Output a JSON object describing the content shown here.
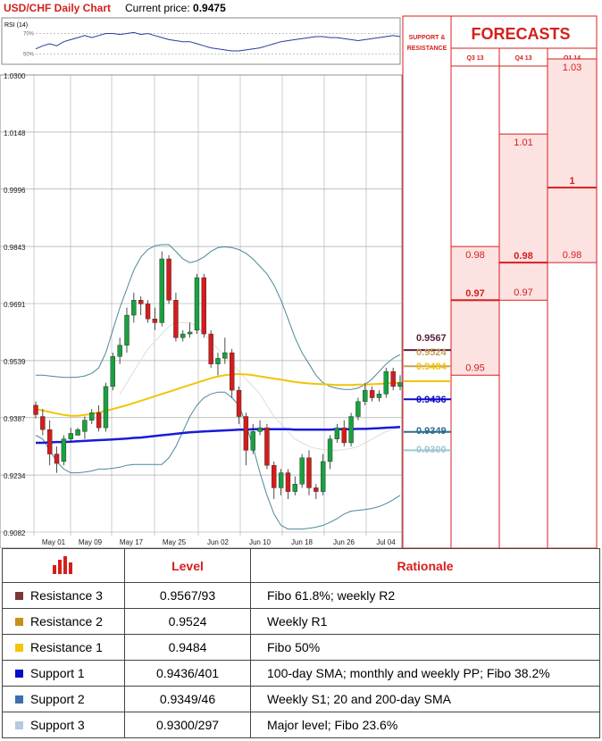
{
  "header": {
    "title": "USD/CHF Daily Chart",
    "price_label": "Current price:",
    "price_value": "0.9475"
  },
  "rsi": {
    "label": "RSI (14)",
    "level_high": "70%",
    "level_low": "50%"
  },
  "forecasts": {
    "title": "FORECASTS",
    "sr_label_line1": "SUPPORT &",
    "sr_label_line2": "RESISTANCE",
    "columns": [
      "Q3 13",
      "Q4 13",
      "Q1 14"
    ],
    "values": [
      {
        "col": 0,
        "low": 0.95,
        "mid": 0.97,
        "high": 0.98,
        "labels": [
          "0.95",
          "0.97",
          "0.98"
        ]
      },
      {
        "col": 1,
        "low": 0.97,
        "mid": 0.98,
        "high": 1.01,
        "labels": [
          "0.97",
          "0.98",
          "1.01"
        ]
      },
      {
        "col": 2,
        "low": 0.98,
        "mid": 1.0,
        "high": 1.03,
        "labels": [
          "0.98",
          "1",
          "1.03"
        ]
      }
    ]
  },
  "sr_levels": [
    {
      "value": 0.9567,
      "label": "0.9567",
      "color": "#5a1f3a"
    },
    {
      "value": 0.9524,
      "label": "0.9524",
      "color": "#c8a060"
    },
    {
      "value": 0.9484,
      "label": "0.9484",
      "color": "#f2c40a"
    },
    {
      "value": 0.9436,
      "label": "0.9436",
      "color": "#0a0ac8"
    },
    {
      "value": 0.9349,
      "label": "0.9349",
      "color": "#2e6c90"
    },
    {
      "value": 0.93,
      "label": "0.9300",
      "color": "#9fc7d4"
    }
  ],
  "chart_data": {
    "type": "candlestick",
    "ylim": [
      0.9082,
      1.03
    ],
    "y_ticks": [
      "1.0300",
      "1.0148",
      "0.9996",
      "0.9843",
      "0.9691",
      "0.9539",
      "0.9387",
      "0.9234",
      "0.9082"
    ],
    "x_labels": [
      "May 01",
      "May 09",
      "May 17",
      "May 25",
      "Jun 02",
      "Jun 10",
      "Jun 18",
      "Jun 26",
      "Jul 04"
    ],
    "candles": [
      [
        0.942,
        0.943,
        0.9385,
        0.9395
      ],
      [
        0.939,
        0.941,
        0.934,
        0.9355
      ],
      [
        0.9355,
        0.938,
        0.926,
        0.929
      ],
      [
        0.929,
        0.931,
        0.924,
        0.9265
      ],
      [
        0.927,
        0.934,
        0.926,
        0.933
      ],
      [
        0.933,
        0.936,
        0.932,
        0.9345
      ],
      [
        0.934,
        0.936,
        0.934,
        0.9355
      ],
      [
        0.935,
        0.939,
        0.933,
        0.938
      ],
      [
        0.938,
        0.941,
        0.937,
        0.94
      ],
      [
        0.94,
        0.942,
        0.935,
        0.936
      ],
      [
        0.936,
        0.948,
        0.935,
        0.947
      ],
      [
        0.947,
        0.956,
        0.946,
        0.955
      ],
      [
        0.955,
        0.96,
        0.953,
        0.958
      ],
      [
        0.958,
        0.968,
        0.956,
        0.966
      ],
      [
        0.966,
        0.972,
        0.964,
        0.97
      ],
      [
        0.97,
        0.971,
        0.966,
        0.969
      ],
      [
        0.969,
        0.97,
        0.964,
        0.965
      ],
      [
        0.965,
        0.968,
        0.962,
        0.964
      ],
      [
        0.964,
        0.983,
        0.963,
        0.981
      ],
      [
        0.981,
        0.982,
        0.969,
        0.97
      ],
      [
        0.97,
        0.972,
        0.959,
        0.96
      ],
      [
        0.96,
        0.962,
        0.959,
        0.961
      ],
      [
        0.961,
        0.964,
        0.96,
        0.9615
      ],
      [
        0.962,
        0.977,
        0.961,
        0.976
      ],
      [
        0.976,
        0.977,
        0.96,
        0.961
      ],
      [
        0.961,
        0.962,
        0.952,
        0.953
      ],
      [
        0.953,
        0.956,
        0.95,
        0.9545
      ],
      [
        0.9545,
        0.96,
        0.953,
        0.956
      ],
      [
        0.956,
        0.957,
        0.944,
        0.946
      ],
      [
        0.946,
        0.947,
        0.937,
        0.939
      ],
      [
        0.939,
        0.94,
        0.926,
        0.93
      ],
      [
        0.93,
        0.937,
        0.929,
        0.935
      ],
      [
        0.935,
        0.938,
        0.934,
        0.936
      ],
      [
        0.936,
        0.937,
        0.925,
        0.926
      ],
      [
        0.926,
        0.927,
        0.917,
        0.92
      ],
      [
        0.92,
        0.925,
        0.918,
        0.924
      ],
      [
        0.924,
        0.925,
        0.917,
        0.919
      ],
      [
        0.919,
        0.923,
        0.918,
        0.921
      ],
      [
        0.921,
        0.929,
        0.92,
        0.928
      ],
      [
        0.928,
        0.93,
        0.918,
        0.92
      ],
      [
        0.92,
        0.921,
        0.917,
        0.919
      ],
      [
        0.919,
        0.929,
        0.918,
        0.927
      ],
      [
        0.927,
        0.934,
        0.925,
        0.933
      ],
      [
        0.933,
        0.937,
        0.932,
        0.936
      ],
      [
        0.936,
        0.938,
        0.931,
        0.932
      ],
      [
        0.932,
        0.94,
        0.931,
        0.939
      ],
      [
        0.939,
        0.944,
        0.938,
        0.943
      ],
      [
        0.943,
        0.948,
        0.942,
        0.946
      ],
      [
        0.946,
        0.947,
        0.943,
        0.944
      ],
      [
        0.944,
        0.946,
        0.943,
        0.945
      ],
      [
        0.945,
        0.952,
        0.944,
        0.951
      ],
      [
        0.951,
        0.952,
        0.946,
        0.947
      ],
      [
        0.947,
        0.95,
        0.946,
        0.948
      ]
    ],
    "ma_yellow": [
      0.941,
      0.9406,
      0.9402,
      0.9398,
      0.9394,
      0.9392,
      0.9392,
      0.9394,
      0.9397,
      0.9401,
      0.9405,
      0.941,
      0.9415,
      0.942,
      0.9426,
      0.9432,
      0.9438,
      0.9444,
      0.945,
      0.9456,
      0.9462,
      0.9468,
      0.9474,
      0.948,
      0.9486,
      0.9492,
      0.9497,
      0.95,
      0.9502,
      0.9503,
      0.9502,
      0.95,
      0.9497,
      0.9494,
      0.9491,
      0.9488,
      0.9485,
      0.9482,
      0.948,
      0.9478,
      0.9477,
      0.9476,
      0.9475,
      0.9474,
      0.9474,
      0.9474,
      0.9475,
      0.9475,
      0.9476,
      0.9477,
      0.9478,
      0.9479,
      0.948
    ],
    "ma_blue": [
      0.932,
      0.932,
      0.9321,
      0.9322,
      0.9322,
      0.9323,
      0.9324,
      0.9325,
      0.9326,
      0.9327,
      0.9328,
      0.9329,
      0.933,
      0.9331,
      0.9333,
      0.9334,
      0.9336,
      0.9338,
      0.934,
      0.9342,
      0.9344,
      0.9346,
      0.9348,
      0.9349,
      0.935,
      0.9351,
      0.9352,
      0.9353,
      0.9354,
      0.9355,
      0.9355,
      0.9356,
      0.9356,
      0.9356,
      0.9356,
      0.9356,
      0.9356,
      0.9355,
      0.9355,
      0.9355,
      0.9355,
      0.9355,
      0.9355,
      0.9356,
      0.9356,
      0.9356,
      0.9357,
      0.9357,
      0.9358,
      0.9359,
      0.936,
      0.9361,
      0.9362
    ],
    "bb_upper": [
      0.95,
      0.95,
      0.9498,
      0.9496,
      0.9494,
      0.9494,
      0.9495,
      0.9498,
      0.9505,
      0.952,
      0.956,
      0.962,
      0.968,
      0.973,
      0.978,
      0.9815,
      0.9835,
      0.9845,
      0.9848,
      0.9848,
      0.983,
      0.981,
      0.98,
      0.9805,
      0.9815,
      0.983,
      0.984,
      0.9842,
      0.984,
      0.9835,
      0.9825,
      0.981,
      0.979,
      0.977,
      0.974,
      0.97,
      0.965,
      0.96,
      0.956,
      0.953,
      0.95,
      0.948,
      0.947,
      0.9465,
      0.9462,
      0.9462,
      0.9466,
      0.9475,
      0.949,
      0.951,
      0.953,
      0.9545,
      0.9555
    ],
    "bb_lower": [
      0.934,
      0.933,
      0.93,
      0.927,
      0.925,
      0.924,
      0.924,
      0.9242,
      0.9245,
      0.925,
      0.925,
      0.9252,
      0.9255,
      0.926,
      0.9262,
      0.9262,
      0.9262,
      0.9262,
      0.9262,
      0.928,
      0.931,
      0.935,
      0.939,
      0.942,
      0.944,
      0.945,
      0.9455,
      0.9455,
      0.944,
      0.942,
      0.937,
      0.931,
      0.924,
      0.918,
      0.913,
      0.91,
      0.909,
      0.909,
      0.909,
      0.9092,
      0.9095,
      0.91,
      0.9108,
      0.9118,
      0.913,
      0.9138,
      0.914,
      0.9142,
      0.9145,
      0.915,
      0.9158,
      0.9168,
      0.918
    ],
    "bb_mid": [
      null,
      null,
      null,
      null,
      null,
      null,
      null,
      null,
      null,
      null,
      null,
      null,
      0.945,
      0.948,
      0.951,
      0.954,
      0.957,
      0.959,
      0.961,
      0.963,
      0.964,
      0.964,
      0.964,
      0.963,
      0.961,
      0.959,
      0.957,
      0.955,
      0.953,
      0.951,
      0.949,
      0.947,
      0.945,
      0.942,
      0.939,
      0.937,
      0.935,
      0.933,
      0.932,
      0.931,
      0.9305,
      0.9302,
      0.93,
      0.93,
      0.9302,
      0.9305,
      0.931,
      0.932,
      0.933,
      0.934,
      0.935,
      0.9355,
      0.936
    ],
    "rsi": [
      55,
      58,
      60,
      58,
      62,
      64,
      66,
      68,
      66,
      68,
      70,
      70,
      69,
      70,
      71,
      69,
      70,
      68,
      66,
      64,
      63,
      62,
      62,
      60,
      58,
      56,
      55,
      54,
      53,
      53,
      54,
      55,
      56,
      58,
      60,
      62,
      63,
      64,
      65,
      66,
      67,
      67,
      66,
      66,
      65,
      64,
      63,
      64,
      65,
      66,
      67,
      68,
      67
    ]
  },
  "table": {
    "header_level": "Level",
    "header_rationale": "Rationale",
    "rows": [
      {
        "name": "Resistance 3",
        "level": "0.9567/93",
        "rationale": "Fibo 61.8%; weekly R2",
        "color": "#7a3838"
      },
      {
        "name": "Resistance 2",
        "level": "0.9524",
        "rationale": "Weekly R1",
        "color": "#c89018"
      },
      {
        "name": "Resistance 1",
        "level": "0.9484",
        "rationale": "Fibo 50%",
        "color": "#f2c40a"
      },
      {
        "name": "Support 1",
        "level": "0.9436/401",
        "rationale": "100-day SMA; monthly and weekly PP; Fibo 38.2%",
        "color": "#0a0ac8"
      },
      {
        "name": "Support 2",
        "level": "0.9349/46",
        "rationale": "Weekly S1; 20 and 200-day SMA",
        "color": "#3f6fa8"
      },
      {
        "name": "Support 3",
        "level": "0.9300/297",
        "rationale": "Major level; Fibo 23.6%",
        "color": "#b8c8e0"
      }
    ]
  }
}
